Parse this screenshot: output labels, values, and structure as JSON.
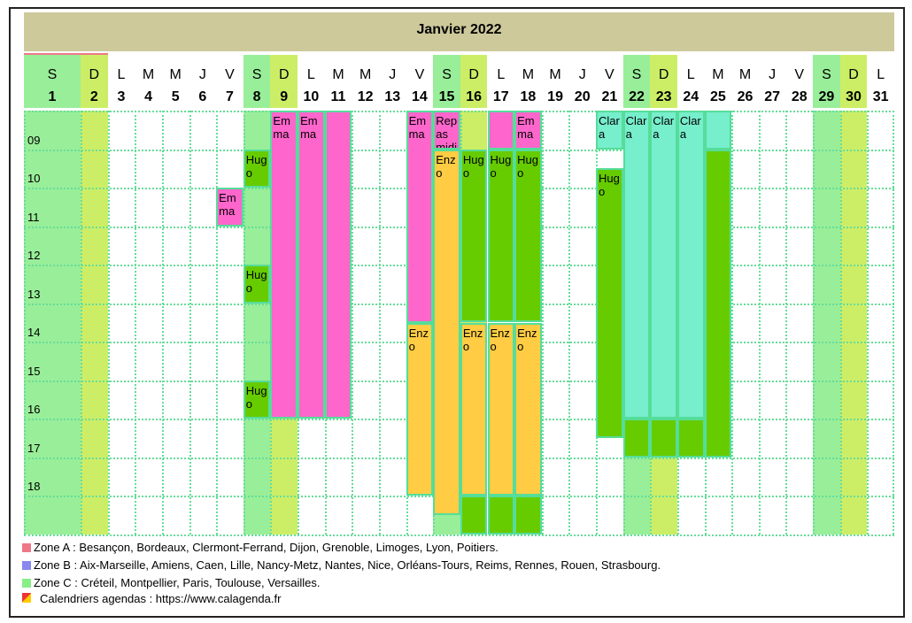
{
  "title": "Janvier 2022",
  "day_letters": [
    "S",
    "D",
    "L",
    "M",
    "M",
    "J",
    "V",
    "S",
    "D",
    "L",
    "M",
    "M",
    "J",
    "V",
    "S",
    "D",
    "L",
    "M",
    "M",
    "J",
    "V",
    "S",
    "D",
    "L",
    "M",
    "M",
    "J",
    "V",
    "S",
    "D",
    "L"
  ],
  "day_numbers": [
    1,
    2,
    3,
    4,
    5,
    6,
    7,
    8,
    9,
    10,
    11,
    12,
    13,
    14,
    15,
    16,
    17,
    18,
    19,
    20,
    21,
    22,
    23,
    24,
    25,
    26,
    27,
    28,
    29,
    30,
    31
  ],
  "hours": [
    "09",
    "10",
    "11",
    "12",
    "13",
    "14",
    "15",
    "16",
    "17",
    "18"
  ],
  "day_start": 8,
  "day_end": 19,
  "events": [
    {
      "day": 7,
      "start": 10,
      "end": 11,
      "label": "Emma",
      "color": "#ff66cc"
    },
    {
      "day": 8,
      "start": 9,
      "end": 10,
      "label": "Hugo",
      "color": "#66cc00"
    },
    {
      "day": 8,
      "start": 12,
      "end": 13,
      "label": "Hugo",
      "color": "#66cc00"
    },
    {
      "day": 8,
      "start": 15,
      "end": 16,
      "label": "Hugo",
      "color": "#66cc00"
    },
    {
      "day": 9,
      "start": 8,
      "end": 16,
      "label": "Emma",
      "color": "#ff66cc"
    },
    {
      "day": 10,
      "start": 8,
      "end": 16,
      "label": "Emma",
      "color": "#ff66cc"
    },
    {
      "day": 11,
      "start": 8,
      "end": 16,
      "color": "#ff66cc"
    },
    {
      "day": 14,
      "start": 8,
      "end": 13.5,
      "label": "Emma",
      "color": "#ff66cc"
    },
    {
      "day": 14,
      "start": 13.5,
      "end": 18,
      "label": "Enzo",
      "color": "#ffcc44"
    },
    {
      "day": 15,
      "start": 8,
      "end": 9,
      "label": "Repas midi",
      "color": "#ff66cc"
    },
    {
      "day": 15,
      "start": 9,
      "end": 18.5,
      "label": "Enzo",
      "color": "#ffcc44"
    },
    {
      "day": 16,
      "start": 9,
      "end": 13.5,
      "label": "Hugo",
      "color": "#66cc00"
    },
    {
      "day": 16,
      "start": 13.5,
      "end": 18,
      "label": "Enzo",
      "color": "#ffcc44"
    },
    {
      "day": 16,
      "start": 18,
      "end": 19,
      "color": "#66cc00"
    },
    {
      "day": 17,
      "start": 8,
      "end": 9,
      "color": "#ff66cc"
    },
    {
      "day": 17,
      "start": 9,
      "end": 13.5,
      "label": "Hugo",
      "color": "#66cc00"
    },
    {
      "day": 17,
      "start": 13.5,
      "end": 18,
      "label": "Enzo",
      "color": "#ffcc44"
    },
    {
      "day": 17,
      "start": 18,
      "end": 19,
      "color": "#66cc00"
    },
    {
      "day": 18,
      "start": 8,
      "end": 9,
      "label": "Emma",
      "color": "#ff66cc"
    },
    {
      "day": 18,
      "start": 9,
      "end": 13.5,
      "label": "Hugo",
      "color": "#66cc00"
    },
    {
      "day": 18,
      "start": 13.5,
      "end": 18,
      "label": "Enzo",
      "color": "#ffcc44"
    },
    {
      "day": 18,
      "start": 18,
      "end": 19,
      "color": "#66cc00"
    },
    {
      "day": 21,
      "start": 8,
      "end": 9,
      "label": "Clara",
      "color": "#77eecc"
    },
    {
      "day": 21,
      "start": 9.5,
      "end": 16.5,
      "label": "Hugo",
      "color": "#66cc00"
    },
    {
      "day": 22,
      "start": 8,
      "end": 16,
      "label": "Clara",
      "color": "#77eecc"
    },
    {
      "day": 22,
      "start": 16,
      "end": 17,
      "color": "#66cc00"
    },
    {
      "day": 23,
      "start": 8,
      "end": 16,
      "label": "Clara",
      "color": "#77eecc"
    },
    {
      "day": 23,
      "start": 16,
      "end": 17,
      "color": "#66cc00"
    },
    {
      "day": 24,
      "start": 8,
      "end": 16,
      "label": "Clara",
      "color": "#77eecc"
    },
    {
      "day": 24,
      "start": 16,
      "end": 17,
      "color": "#66cc00"
    },
    {
      "day": 25,
      "start": 8,
      "end": 9,
      "color": "#77eecc"
    },
    {
      "day": 25,
      "start": 9,
      "end": 17,
      "color": "#66cc00"
    }
  ],
  "legend": [
    {
      "text": "Zone A : Besançon, Bordeaux, Clermont-Ferrand, Dijon, Grenoble, Limoges, Lyon, Poitiers.",
      "color": "#ee7788"
    },
    {
      "text": "Zone B : Aix-Marseille, Amiens, Caen, Lille, Nancy-Metz, Nantes, Nice, Orléans-Tours, Reims, Rennes, Rouen, Strasbourg.",
      "color": "#8888ee"
    },
    {
      "text": "Zone C : Créteil, Montpellier, Paris, Toulouse, Versailles.",
      "color": "#88ee88"
    }
  ],
  "footer": "Calendriers agendas : https://www.calagenda.fr"
}
